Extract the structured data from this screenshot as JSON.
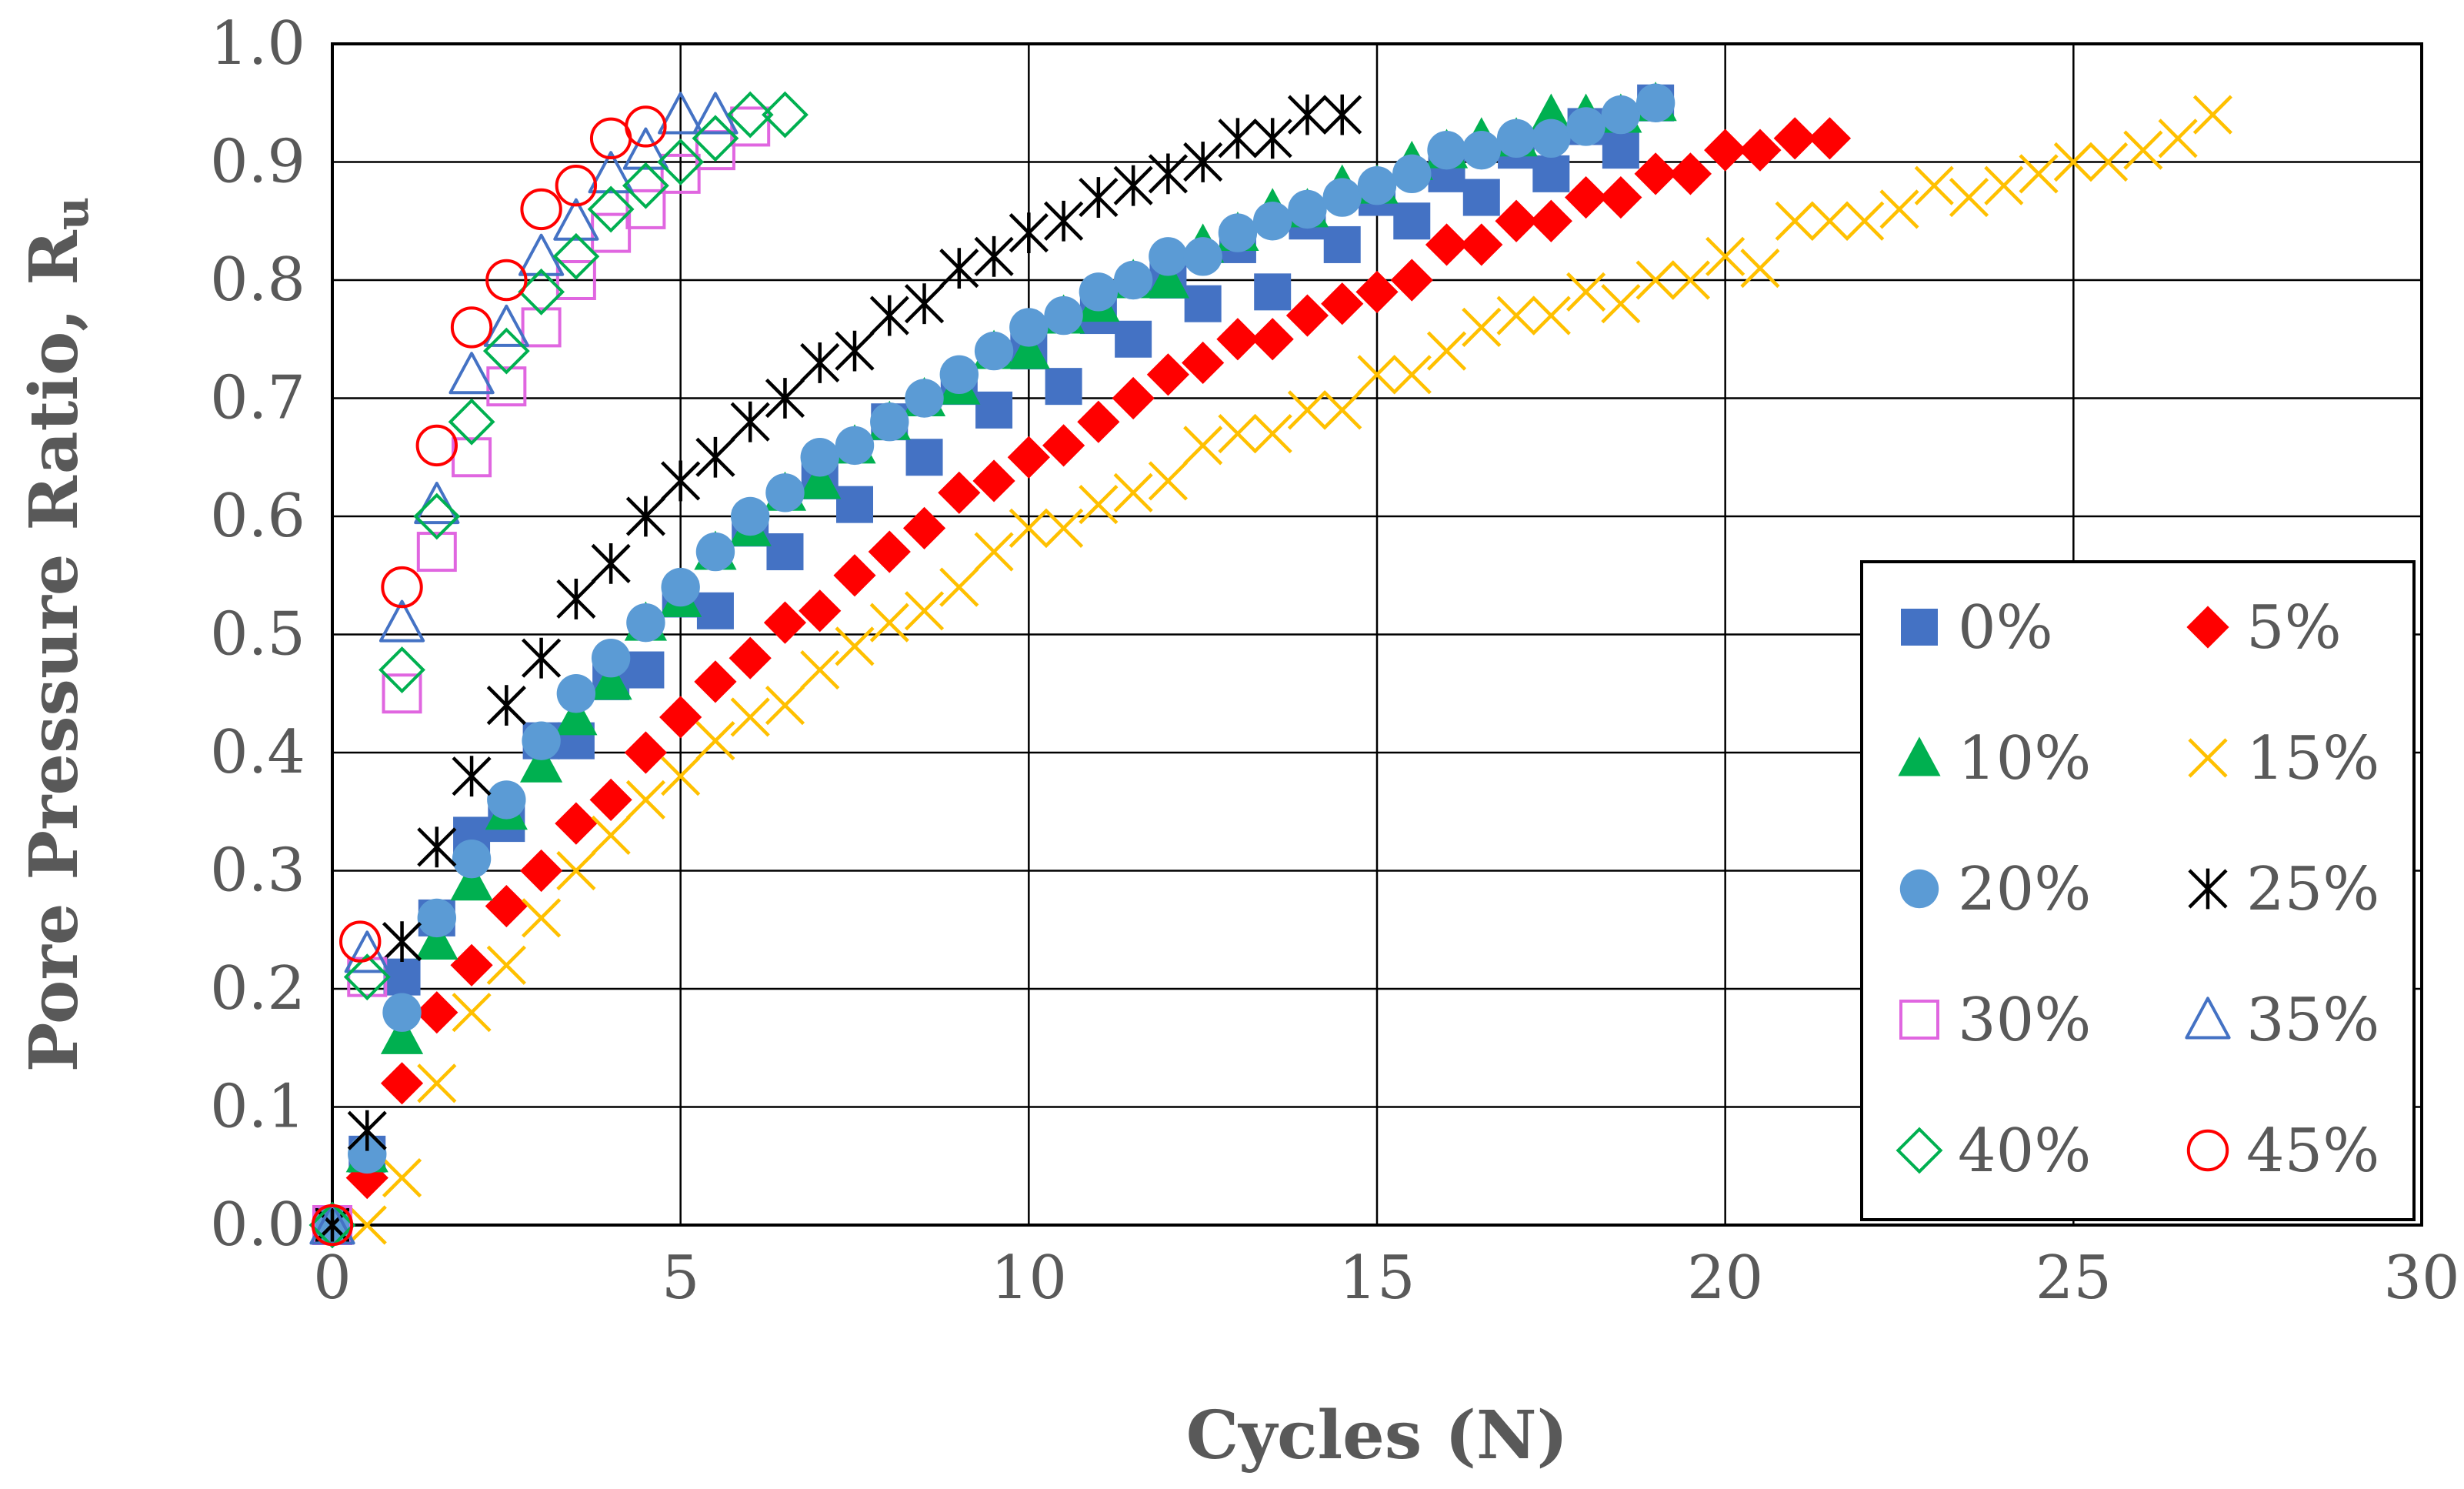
{
  "chart_data": {
    "type": "scatter",
    "title": "",
    "xlabel": "Cycles (N)",
    "ylabel_main": "Pore Pressure Ratio, R",
    "ylabel_sub": "u",
    "xlim": [
      0,
      30
    ],
    "ylim": [
      0,
      1.0
    ],
    "x_ticks": [
      "0",
      "5",
      "10",
      "15",
      "20",
      "25",
      "30"
    ],
    "y_ticks": [
      "0.0",
      "0.1",
      "0.2",
      "0.3",
      "0.4",
      "0.5",
      "0.6",
      "0.7",
      "0.8",
      "0.9",
      "1.0"
    ],
    "grid": true,
    "legend_position": "lower-right",
    "series": [
      {
        "name": "0%",
        "marker": "square",
        "filled": true,
        "color": "#4472C4",
        "points": [
          [
            0,
            0
          ],
          [
            0.5,
            0.06
          ],
          [
            1,
            0.21
          ],
          [
            1.5,
            0.26
          ],
          [
            2,
            0.33
          ],
          [
            2.5,
            0.34
          ],
          [
            3,
            0.41
          ],
          [
            3.5,
            0.41
          ],
          [
            4,
            0.46
          ],
          [
            4.5,
            0.47
          ],
          [
            5,
            0.53
          ],
          [
            5.5,
            0.52
          ],
          [
            6,
            0.59
          ],
          [
            6.5,
            0.57
          ],
          [
            7,
            0.63
          ],
          [
            7.5,
            0.61
          ],
          [
            8,
            0.68
          ],
          [
            8.5,
            0.65
          ],
          [
            9,
            0.71
          ],
          [
            9.5,
            0.69
          ],
          [
            10,
            0.74
          ],
          [
            10.5,
            0.71
          ],
          [
            11,
            0.77
          ],
          [
            11.5,
            0.75
          ],
          [
            12,
            0.8
          ],
          [
            12.5,
            0.78
          ],
          [
            13,
            0.83
          ],
          [
            13.5,
            0.79
          ],
          [
            14,
            0.85
          ],
          [
            14.5,
            0.83
          ],
          [
            15,
            0.87
          ],
          [
            15.5,
            0.85
          ],
          [
            16,
            0.89
          ],
          [
            16.5,
            0.87
          ],
          [
            17,
            0.91
          ],
          [
            17.5,
            0.89
          ],
          [
            18,
            0.93
          ],
          [
            18.5,
            0.91
          ],
          [
            19,
            0.95
          ]
        ]
      },
      {
        "name": "5%",
        "marker": "diamond",
        "filled": true,
        "color": "#FF0000",
        "points": [
          [
            0,
            0
          ],
          [
            0.5,
            0.04
          ],
          [
            1,
            0.12
          ],
          [
            1.5,
            0.18
          ],
          [
            2,
            0.22
          ],
          [
            2.5,
            0.27
          ],
          [
            3,
            0.3
          ],
          [
            3.5,
            0.34
          ],
          [
            4,
            0.36
          ],
          [
            4.5,
            0.4
          ],
          [
            5,
            0.43
          ],
          [
            5.5,
            0.46
          ],
          [
            6,
            0.48
          ],
          [
            6.5,
            0.51
          ],
          [
            7,
            0.52
          ],
          [
            7.5,
            0.55
          ],
          [
            8,
            0.57
          ],
          [
            8.5,
            0.59
          ],
          [
            9,
            0.62
          ],
          [
            9.5,
            0.63
          ],
          [
            10,
            0.65
          ],
          [
            10.5,
            0.66
          ],
          [
            11,
            0.68
          ],
          [
            11.5,
            0.7
          ],
          [
            12,
            0.72
          ],
          [
            12.5,
            0.73
          ],
          [
            13,
            0.75
          ],
          [
            13.5,
            0.75
          ],
          [
            14,
            0.77
          ],
          [
            14.5,
            0.78
          ],
          [
            15,
            0.79
          ],
          [
            15.5,
            0.8
          ],
          [
            16,
            0.83
          ],
          [
            16.5,
            0.83
          ],
          [
            17,
            0.85
          ],
          [
            17.5,
            0.85
          ],
          [
            18,
            0.87
          ],
          [
            18.5,
            0.87
          ],
          [
            19,
            0.89
          ],
          [
            19.5,
            0.89
          ],
          [
            20,
            0.91
          ],
          [
            20.5,
            0.91
          ],
          [
            21,
            0.92
          ],
          [
            21.5,
            0.92
          ]
        ]
      },
      {
        "name": "10%",
        "marker": "triangle",
        "filled": true,
        "color": "#00B050",
        "points": [
          [
            0,
            0
          ],
          [
            0.5,
            0.06
          ],
          [
            1,
            0.16
          ],
          [
            1.5,
            0.24
          ],
          [
            2,
            0.29
          ],
          [
            2.5,
            0.35
          ],
          [
            3,
            0.39
          ],
          [
            3.5,
            0.43
          ],
          [
            4,
            0.46
          ],
          [
            4.5,
            0.51
          ],
          [
            5,
            0.53
          ],
          [
            5.5,
            0.57
          ],
          [
            6,
            0.59
          ],
          [
            6.5,
            0.62
          ],
          [
            7,
            0.63
          ],
          [
            7.5,
            0.66
          ],
          [
            8,
            0.68
          ],
          [
            8.5,
            0.7
          ],
          [
            9,
            0.71
          ],
          [
            9.5,
            0.74
          ],
          [
            10,
            0.74
          ],
          [
            10.5,
            0.77
          ],
          [
            11,
            0.78
          ],
          [
            11.5,
            0.8
          ],
          [
            12,
            0.8
          ],
          [
            12.5,
            0.83
          ],
          [
            13,
            0.84
          ],
          [
            13.5,
            0.86
          ],
          [
            14,
            0.86
          ],
          [
            14.5,
            0.88
          ],
          [
            15,
            0.88
          ],
          [
            15.5,
            0.9
          ],
          [
            16,
            0.91
          ],
          [
            16.5,
            0.92
          ],
          [
            17,
            0.92
          ],
          [
            17.5,
            0.94
          ],
          [
            18,
            0.94
          ],
          [
            18.5,
            0.94
          ],
          [
            19,
            0.95
          ]
        ]
      },
      {
        "name": "15%",
        "marker": "x",
        "filled": false,
        "color": "#FFC000",
        "points": [
          [
            0.5,
            0.0
          ],
          [
            1,
            0.04
          ],
          [
            1.5,
            0.12
          ],
          [
            2,
            0.18
          ],
          [
            2.5,
            0.22
          ],
          [
            3,
            0.26
          ],
          [
            3.5,
            0.3
          ],
          [
            4,
            0.33
          ],
          [
            4.5,
            0.36
          ],
          [
            5,
            0.38
          ],
          [
            5.5,
            0.41
          ],
          [
            6,
            0.43
          ],
          [
            6.5,
            0.44
          ],
          [
            7,
            0.47
          ],
          [
            7.5,
            0.49
          ],
          [
            8,
            0.51
          ],
          [
            8.5,
            0.52
          ],
          [
            9,
            0.54
          ],
          [
            9.5,
            0.57
          ],
          [
            10,
            0.59
          ],
          [
            10.5,
            0.59
          ],
          [
            11,
            0.61
          ],
          [
            11.5,
            0.62
          ],
          [
            12,
            0.63
          ],
          [
            12.5,
            0.66
          ],
          [
            13,
            0.67
          ],
          [
            13.5,
            0.67
          ],
          [
            14,
            0.69
          ],
          [
            14.5,
            0.69
          ],
          [
            15,
            0.72
          ],
          [
            15.5,
            0.72
          ],
          [
            16,
            0.74
          ],
          [
            16.5,
            0.76
          ],
          [
            17,
            0.77
          ],
          [
            17.5,
            0.77
          ],
          [
            18,
            0.79
          ],
          [
            18.5,
            0.78
          ],
          [
            19,
            0.8
          ],
          [
            19.5,
            0.8
          ],
          [
            20,
            0.82
          ],
          [
            20.5,
            0.81
          ],
          [
            21,
            0.85
          ],
          [
            21.5,
            0.85
          ],
          [
            22,
            0.85
          ],
          [
            22.5,
            0.86
          ],
          [
            23,
            0.88
          ],
          [
            23.5,
            0.87
          ],
          [
            24,
            0.88
          ],
          [
            24.5,
            0.89
          ],
          [
            25,
            0.9
          ],
          [
            25.5,
            0.9
          ],
          [
            26,
            0.91
          ],
          [
            26.5,
            0.92
          ],
          [
            27,
            0.94
          ]
        ]
      },
      {
        "name": "20%",
        "marker": "circle",
        "filled": true,
        "color": "#5B9BD5",
        "points": [
          [
            0,
            0
          ],
          [
            0.5,
            0.06
          ],
          [
            1,
            0.18
          ],
          [
            1.5,
            0.26
          ],
          [
            2,
            0.31
          ],
          [
            2.5,
            0.36
          ],
          [
            3,
            0.41
          ],
          [
            3.5,
            0.45
          ],
          [
            4,
            0.48
          ],
          [
            4.5,
            0.51
          ],
          [
            5,
            0.54
          ],
          [
            5.5,
            0.57
          ],
          [
            6,
            0.6
          ],
          [
            6.5,
            0.62
          ],
          [
            7,
            0.65
          ],
          [
            7.5,
            0.66
          ],
          [
            8,
            0.68
          ],
          [
            8.5,
            0.7
          ],
          [
            9,
            0.72
          ],
          [
            9.5,
            0.74
          ],
          [
            10,
            0.76
          ],
          [
            10.5,
            0.77
          ],
          [
            11,
            0.79
          ],
          [
            11.5,
            0.8
          ],
          [
            12,
            0.82
          ],
          [
            12.5,
            0.82
          ],
          [
            13,
            0.84
          ],
          [
            13.5,
            0.85
          ],
          [
            14,
            0.86
          ],
          [
            14.5,
            0.87
          ],
          [
            15,
            0.88
          ],
          [
            15.5,
            0.89
          ],
          [
            16,
            0.91
          ],
          [
            16.5,
            0.91
          ],
          [
            17,
            0.92
          ],
          [
            17.5,
            0.92
          ],
          [
            18,
            0.93
          ],
          [
            18.5,
            0.94
          ],
          [
            19,
            0.95
          ]
        ]
      },
      {
        "name": "25%",
        "marker": "asterisk",
        "filled": false,
        "color": "#000000",
        "points": [
          [
            0,
            0
          ],
          [
            0.5,
            0.08
          ],
          [
            1,
            0.24
          ],
          [
            1.5,
            0.32
          ],
          [
            2,
            0.38
          ],
          [
            2.5,
            0.44
          ],
          [
            3,
            0.48
          ],
          [
            3.5,
            0.53
          ],
          [
            4,
            0.56
          ],
          [
            4.5,
            0.6
          ],
          [
            5,
            0.63
          ],
          [
            5.5,
            0.65
          ],
          [
            6,
            0.68
          ],
          [
            6.5,
            0.7
          ],
          [
            7,
            0.73
          ],
          [
            7.5,
            0.74
          ],
          [
            8,
            0.77
          ],
          [
            8.5,
            0.78
          ],
          [
            9,
            0.81
          ],
          [
            9.5,
            0.82
          ],
          [
            10,
            0.84
          ],
          [
            10.5,
            0.85
          ],
          [
            11,
            0.87
          ],
          [
            11.5,
            0.88
          ],
          [
            12,
            0.89
          ],
          [
            12.5,
            0.9
          ],
          [
            13,
            0.92
          ],
          [
            13.5,
            0.92
          ],
          [
            14,
            0.94
          ],
          [
            14.5,
            0.94
          ]
        ]
      },
      {
        "name": "30%",
        "marker": "square",
        "filled": false,
        "color": "#E066E0",
        "points": [
          [
            0,
            0
          ],
          [
            0.5,
            0.21
          ],
          [
            1,
            0.45
          ],
          [
            1.5,
            0.57
          ],
          [
            2,
            0.65
          ],
          [
            2.5,
            0.71
          ],
          [
            3,
            0.76
          ],
          [
            3.5,
            0.8
          ],
          [
            4,
            0.84
          ],
          [
            4.5,
            0.86
          ],
          [
            5,
            0.89
          ],
          [
            5.5,
            0.91
          ],
          [
            6,
            0.93
          ]
        ]
      },
      {
        "name": "35%",
        "marker": "triangle",
        "filled": false,
        "color": "#4472C4",
        "points": [
          [
            0,
            0
          ],
          [
            0.5,
            0.23
          ],
          [
            1,
            0.51
          ],
          [
            1.5,
            0.61
          ],
          [
            2,
            0.72
          ],
          [
            2.5,
            0.76
          ],
          [
            3,
            0.82
          ],
          [
            3.5,
            0.85
          ],
          [
            4,
            0.89
          ],
          [
            4.5,
            0.91
          ],
          [
            5,
            0.94
          ],
          [
            5.5,
            0.94
          ]
        ]
      },
      {
        "name": "40%",
        "marker": "diamond",
        "filled": false,
        "color": "#00B050",
        "points": [
          [
            0,
            0
          ],
          [
            0.5,
            0.21
          ],
          [
            1,
            0.47
          ],
          [
            1.5,
            0.6
          ],
          [
            2,
            0.68
          ],
          [
            2.5,
            0.74
          ],
          [
            3,
            0.79
          ],
          [
            3.5,
            0.82
          ],
          [
            4,
            0.86
          ],
          [
            4.5,
            0.88
          ],
          [
            5,
            0.9
          ],
          [
            5.5,
            0.92
          ],
          [
            6,
            0.94
          ],
          [
            6.5,
            0.94
          ]
        ]
      },
      {
        "name": "45%",
        "marker": "circle",
        "filled": false,
        "color": "#FF0000",
        "points": [
          [
            0,
            0
          ],
          [
            0.4,
            0.24
          ],
          [
            1,
            0.54
          ],
          [
            1.5,
            0.66
          ],
          [
            2,
            0.76
          ],
          [
            2.5,
            0.8
          ],
          [
            3,
            0.86
          ],
          [
            3.5,
            0.88
          ],
          [
            4,
            0.92
          ],
          [
            4.5,
            0.93
          ]
        ]
      }
    ]
  }
}
